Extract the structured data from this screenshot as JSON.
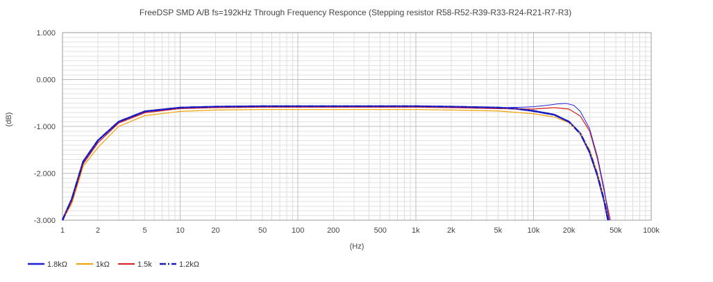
{
  "chart_data": {
    "type": "line",
    "title": "FreeDSP SMD A/B fs=192kHz Through Frequency Responce (Stepping resistor R58-R52-R39-R33-R24-R21-R7-R3)",
    "xlabel": "(Hz)",
    "ylabel": "(dB)",
    "x_scale": "log",
    "xlim": [
      1,
      100000
    ],
    "ylim": [
      -3.0,
      1.0
    ],
    "grid": true,
    "legend_position": "bottom-left",
    "x_tick_values": [
      1,
      2,
      5,
      10,
      20,
      50,
      100,
      200,
      500,
      1000,
      2000,
      5000,
      10000,
      20000,
      50000,
      100000
    ],
    "x_tick_labels": [
      "1",
      "2",
      "5",
      "10",
      "20",
      "50",
      "100",
      "200",
      "500",
      "1k",
      "2k",
      "5k",
      "10k",
      "20k",
      "50k",
      "100k"
    ],
    "y_tick_values": [
      1.0,
      0.0,
      -1.0,
      -2.0,
      -3.0
    ],
    "y_tick_labels": [
      "1.000",
      "0.000",
      "-1.000",
      "-2.000",
      "-3.000"
    ],
    "series": [
      {
        "name": "1.8kΩ",
        "color": "#1f1fd6",
        "dash": "solid",
        "width": 2.5,
        "points": [
          [
            1,
            -3.0
          ],
          [
            1.2,
            -2.55
          ],
          [
            1.5,
            -1.75
          ],
          [
            2,
            -1.3
          ],
          [
            3,
            -0.9
          ],
          [
            5,
            -0.68
          ],
          [
            10,
            -0.6
          ],
          [
            20,
            -0.58
          ],
          [
            50,
            -0.57
          ],
          [
            100,
            -0.57
          ],
          [
            500,
            -0.57
          ],
          [
            1000,
            -0.57
          ],
          [
            2000,
            -0.58
          ],
          [
            5000,
            -0.6
          ],
          [
            7000,
            -0.62
          ],
          [
            10000,
            -0.67
          ],
          [
            15000,
            -0.75
          ],
          [
            20000,
            -0.9
          ],
          [
            25000,
            -1.15
          ],
          [
            30000,
            -1.55
          ],
          [
            35000,
            -2.05
          ],
          [
            40000,
            -2.6
          ],
          [
            43000,
            -3.0
          ]
        ]
      },
      {
        "name": "1kΩ",
        "color": "#f0a000",
        "dash": "solid",
        "width": 1.2,
        "points": [
          [
            1,
            -3.0
          ],
          [
            1.2,
            -2.65
          ],
          [
            1.5,
            -1.85
          ],
          [
            2,
            -1.45
          ],
          [
            3,
            -1.0
          ],
          [
            5,
            -0.77
          ],
          [
            10,
            -0.68
          ],
          [
            20,
            -0.65
          ],
          [
            50,
            -0.64
          ],
          [
            100,
            -0.64
          ],
          [
            500,
            -0.64
          ],
          [
            1000,
            -0.64
          ],
          [
            2000,
            -0.65
          ],
          [
            5000,
            -0.67
          ],
          [
            10000,
            -0.73
          ],
          [
            15000,
            -0.8
          ],
          [
            20000,
            -0.92
          ],
          [
            25000,
            -1.15
          ],
          [
            30000,
            -1.5
          ],
          [
            35000,
            -2.0
          ],
          [
            40000,
            -2.55
          ],
          [
            44000,
            -3.0
          ]
        ]
      },
      {
        "name": "1.5k",
        "color": "#d42020",
        "dash": "solid",
        "width": 1.2,
        "points": [
          [
            1,
            -3.0
          ],
          [
            1.2,
            -2.6
          ],
          [
            1.5,
            -1.8
          ],
          [
            2,
            -1.35
          ],
          [
            3,
            -0.93
          ],
          [
            5,
            -0.71
          ],
          [
            10,
            -0.62
          ],
          [
            20,
            -0.6
          ],
          [
            50,
            -0.59
          ],
          [
            100,
            -0.59
          ],
          [
            500,
            -0.59
          ],
          [
            1000,
            -0.59
          ],
          [
            2000,
            -0.6
          ],
          [
            5000,
            -0.62
          ],
          [
            10000,
            -0.63
          ],
          [
            15000,
            -0.6
          ],
          [
            20000,
            -0.63
          ],
          [
            25000,
            -0.78
          ],
          [
            30000,
            -1.1
          ],
          [
            35000,
            -1.7
          ],
          [
            40000,
            -2.4
          ],
          [
            45000,
            -3.0
          ]
        ]
      },
      {
        "name": "1.2kΩ",
        "color": "#1a1ab8",
        "dash": "dashdot",
        "width": 2.5,
        "points": [
          [
            1,
            -3.0
          ],
          [
            1.2,
            -2.55
          ],
          [
            1.5,
            -1.75
          ],
          [
            2,
            -1.3
          ],
          [
            3,
            -0.9
          ],
          [
            5,
            -0.68
          ],
          [
            10,
            -0.6
          ],
          [
            20,
            -0.58
          ],
          [
            50,
            -0.57
          ],
          [
            100,
            -0.57
          ],
          [
            500,
            -0.57
          ],
          [
            1000,
            -0.57
          ],
          [
            2000,
            -0.58
          ],
          [
            5000,
            -0.6
          ],
          [
            7000,
            -0.62
          ],
          [
            10000,
            -0.67
          ],
          [
            15000,
            -0.75
          ],
          [
            20000,
            -0.9
          ],
          [
            25000,
            -1.15
          ],
          [
            30000,
            -1.55
          ],
          [
            35000,
            -2.05
          ],
          [
            40000,
            -2.6
          ],
          [
            43000,
            -3.0
          ]
        ]
      },
      {
        "name": "",
        "color": "#2323e0",
        "dash": "solid",
        "width": 1.0,
        "points": [
          [
            5000,
            -0.6
          ],
          [
            8000,
            -0.59
          ],
          [
            10000,
            -0.58
          ],
          [
            13000,
            -0.55
          ],
          [
            16000,
            -0.52
          ],
          [
            19000,
            -0.51
          ],
          [
            22000,
            -0.55
          ],
          [
            25000,
            -0.68
          ],
          [
            30000,
            -1.05
          ],
          [
            35000,
            -1.65
          ],
          [
            40000,
            -2.35
          ],
          [
            44000,
            -3.0
          ]
        ]
      }
    ]
  }
}
